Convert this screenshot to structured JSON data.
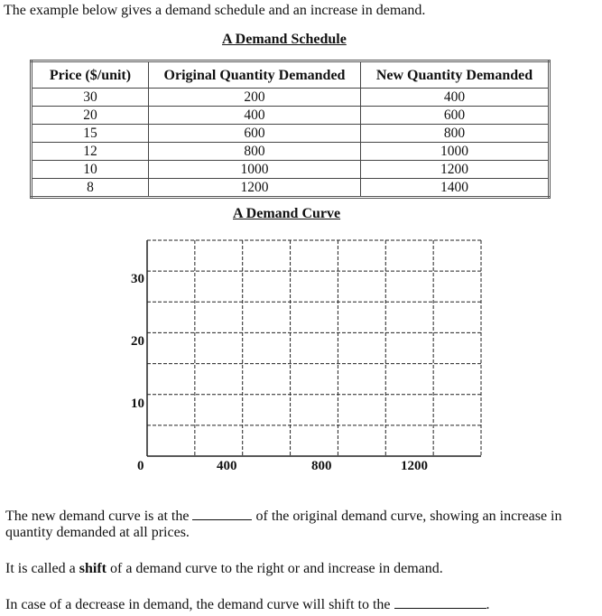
{
  "intro": "The example below gives a demand schedule and an increase in demand.",
  "schedule_title": "A Demand Schedule",
  "table": {
    "headers": [
      "Price ($/unit)",
      "Original Quantity Demanded",
      "New Quantity Demanded"
    ],
    "rows": [
      [
        "30",
        "200",
        "400"
      ],
      [
        "20",
        "400",
        "600"
      ],
      [
        "15",
        "600",
        "800"
      ],
      [
        "12",
        "800",
        "1000"
      ],
      [
        "10",
        "1000",
        "1200"
      ],
      [
        "8",
        "1200",
        "1400"
      ]
    ]
  },
  "curve_title": "A Demand Curve",
  "graph": {
    "y_ticks": [
      "30",
      "20",
      "10"
    ],
    "x_ticks": [
      "0",
      "400",
      "800",
      "1200"
    ],
    "grid": "dashed",
    "columns": 7,
    "rows": 7
  },
  "text": {
    "line1a": "The new demand curve is at the ",
    "line1b": " of the original demand curve, showing an increase in",
    "line2": "quantity demanded at all prices.",
    "line3a": "It is called a ",
    "line3b": "shift",
    "line3c": " of a demand curve to the right or and increase in demand.",
    "line4a": "In case of a decrease in demand, the demand curve will shift to the ",
    "line4b": "."
  }
}
